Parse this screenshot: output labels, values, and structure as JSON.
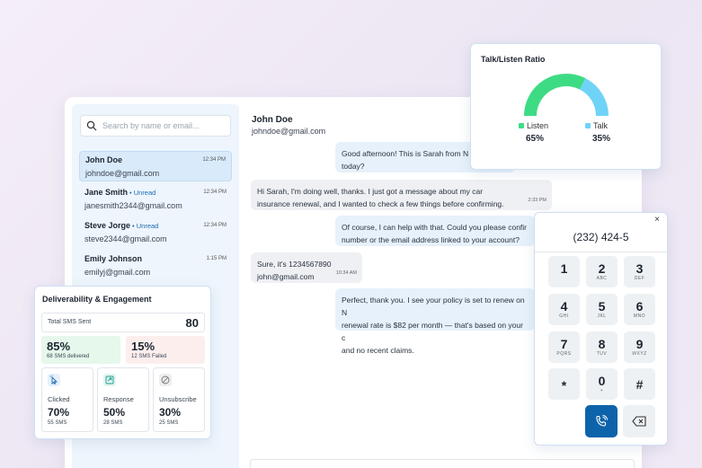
{
  "search": {
    "placeholder": "Search by name or email..."
  },
  "conversations": [
    {
      "name": "John Doe",
      "unread": "",
      "email": "johndoe@gmail.com",
      "time": "12:34 PM"
    },
    {
      "name": "Jane Smith",
      "unread": "• Unread",
      "email": "janesmith2344@gmail.com",
      "time": "12:34 PM"
    },
    {
      "name": "Steve Jorge",
      "unread": "• Unread",
      "email": "steve2344@gmail.com",
      "time": "12:34 PM"
    },
    {
      "name": "Emily Johnson",
      "unread": "",
      "email": "emilyj@gmail.com",
      "time": "1:15 PM"
    }
  ],
  "chat": {
    "name": "John Doe",
    "email": "johndoe@gmail.com",
    "messages": [
      {
        "line1": "Good afternoon! This is Sarah from N",
        "line2": "today?",
        "time": ""
      },
      {
        "line1": "Hi Sarah, I'm doing well, thanks. I just got a message about my car",
        "line2": "insurance renewal, and I wanted to check a few things before confirming.",
        "time": "2:33 PM"
      },
      {
        "line1": "Of course, I can help with that. Could you please confir",
        "line2": "number or the email address linked to your account?",
        "time": ""
      },
      {
        "line1": "Sure, it's 1234567890",
        "line2": "john@gmail.com",
        "time": "10:34 AM"
      },
      {
        "line1": "Perfect, thank you. I see your policy is set to renew on N",
        "line2": "renewal rate is $82 per month — that's based on your c",
        "line3": "and no recent claims.",
        "time": ""
      }
    ]
  },
  "ratio": {
    "title": "Talk/Listen Ratio",
    "listen_label": "Listen",
    "listen_value": "65%",
    "talk_label": "Talk",
    "talk_value": "35%",
    "listen_color": "#3ddc84",
    "talk_color": "#6fd3f7"
  },
  "chart_data": {
    "type": "pie",
    "categories": [
      "Listen",
      "Talk"
    ],
    "values": [
      65,
      35
    ],
    "title": "Talk/Listen Ratio"
  },
  "dialer": {
    "close": "×",
    "number": "(232) 424-5",
    "keys": [
      {
        "d": "1",
        "l": ""
      },
      {
        "d": "2",
        "l": "ABC"
      },
      {
        "d": "3",
        "l": "DEF"
      },
      {
        "d": "4",
        "l": "GHI"
      },
      {
        "d": "5",
        "l": "JKL"
      },
      {
        "d": "6",
        "l": "MNO"
      },
      {
        "d": "7",
        "l": "PQRS"
      },
      {
        "d": "8",
        "l": "TUV"
      },
      {
        "d": "9",
        "l": "WXYZ"
      },
      {
        "d": "*",
        "l": ""
      },
      {
        "d": "0",
        "l": "+"
      },
      {
        "d": "#",
        "l": ""
      }
    ]
  },
  "deliverability": {
    "title": "Deliverability & Engagement",
    "sent_label": "Total SMS Sent",
    "sent_value": "80",
    "delivered_pct": "85%",
    "delivered_sub": "68 SMS delivered",
    "failed_pct": "15%",
    "failed_sub": "12 SMS Failed",
    "metrics": [
      {
        "label": "Clicked",
        "pct": "70%",
        "sub": "55 SMS",
        "icon": "cursor-click-icon"
      },
      {
        "label": "Response",
        "pct": "50%",
        "sub": "28 SMS",
        "icon": "reply-icon"
      },
      {
        "label": "Unsubscribe",
        "pct": "30%",
        "sub": "25 SMS",
        "icon": "block-icon"
      }
    ]
  }
}
